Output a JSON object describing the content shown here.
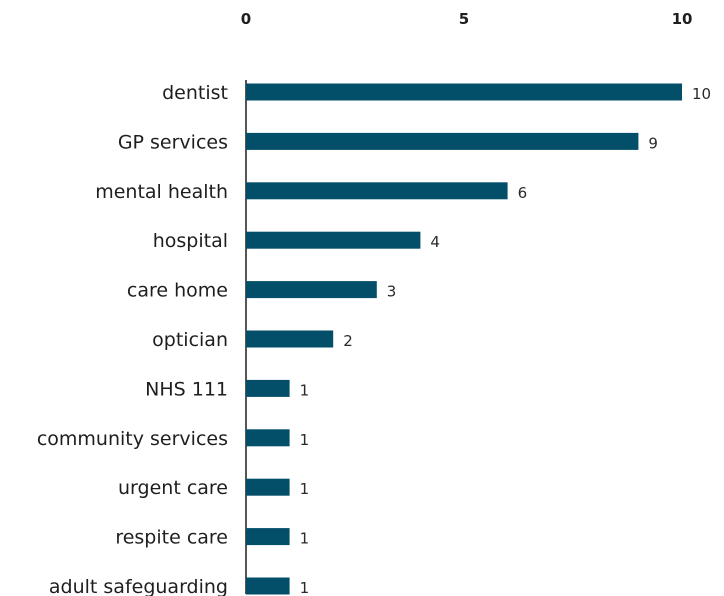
{
  "chart_data": {
    "type": "bar",
    "orientation": "horizontal",
    "title": "",
    "xlabel": "",
    "ylabel": "",
    "xlim": [
      0,
      10
    ],
    "x_ticks": [
      0,
      5,
      10
    ],
    "x_tick_labels": [
      "0",
      "5",
      "10"
    ],
    "x_axis_position": "top",
    "grid": false,
    "legend": "none",
    "bar_color": "#034f6a",
    "categories": [
      "dentist",
      "GP services",
      "mental health",
      "hospital",
      "care home",
      "optician",
      "NHS 111",
      "community services",
      "urgent care",
      "respite care",
      "adult safeguarding"
    ],
    "values": [
      10,
      9,
      6,
      4,
      3,
      2,
      1,
      1,
      1,
      1,
      1
    ],
    "data_labels": [
      "10",
      "9",
      "6",
      "4",
      "3",
      "2",
      "1",
      "1",
      "1",
      "1",
      "1"
    ]
  }
}
